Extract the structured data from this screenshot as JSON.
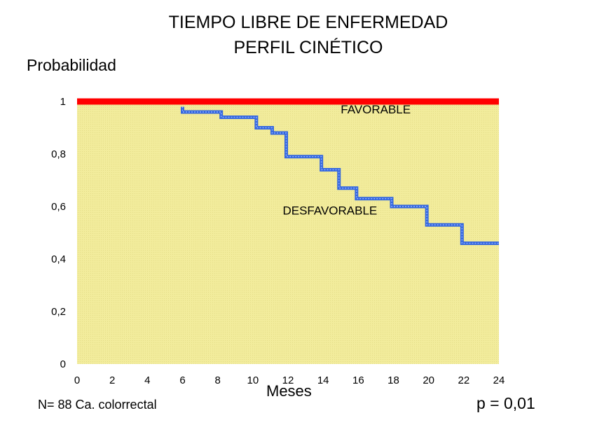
{
  "chart_data": {
    "type": "line",
    "title": "TIEMPO LIBRE DE ENFERMEDAD",
    "subtitle": "PERFIL CINÉTICO",
    "ylabel": "Probabilidad",
    "xlabel": "Meses",
    "xlim": [
      0,
      24
    ],
    "ylim": [
      0,
      1
    ],
    "x_ticks": [
      "0",
      "2",
      "4",
      "6",
      "8",
      "10",
      "12",
      "14",
      "16",
      "18",
      "20",
      "22",
      "24"
    ],
    "y_ticks": [
      "0",
      "0,2",
      "0,4",
      "0,6",
      "0,8",
      "1"
    ],
    "plot_background": "#f5f0a0",
    "grid": false,
    "step": true,
    "series": [
      {
        "name": "FAVORABLE",
        "color": "#ff0000",
        "x": [
          0,
          24
        ],
        "y": [
          1,
          1
        ]
      },
      {
        "name": "DESFAVORABLE",
        "color": "#3366dd",
        "x": [
          6,
          6,
          8.2,
          10.2,
          11.1,
          11.9,
          13.9,
          14.9,
          15.9,
          17.9,
          19.9,
          21.9,
          24
        ],
        "y": [
          0.98,
          0.96,
          0.94,
          0.9,
          0.88,
          0.79,
          0.74,
          0.67,
          0.63,
          0.6,
          0.53,
          0.46,
          0.46
        ]
      }
    ],
    "annotations": {
      "n_note": "N= 88 Ca. colorrectal",
      "p_value": "p = 0,01"
    }
  }
}
